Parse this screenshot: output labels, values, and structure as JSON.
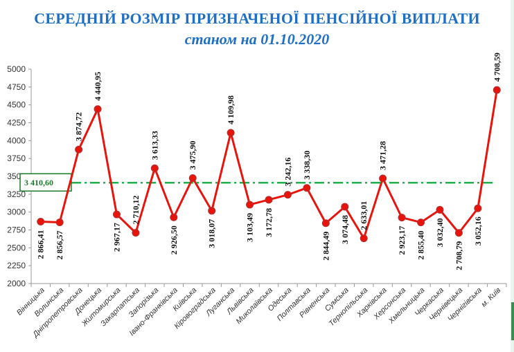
{
  "chart_data": {
    "type": "line",
    "title": "СЕРЕДНІЙ РОЗМІР ПРИЗНАЧЕНОЇ ПЕНСІЙНОЇ ВИПЛАТИ",
    "subtitle": "станом на 01.10.2020",
    "xlabel": "",
    "ylabel": "",
    "ylim": [
      2000,
      5000
    ],
    "yticks": [
      2000,
      2250,
      2500,
      2750,
      3000,
      3250,
      3500,
      3750,
      4000,
      4250,
      4500,
      4750,
      5000
    ],
    "grid": false,
    "categories": [
      "Вінницька",
      "Волинська",
      "Дніпропетровська",
      "Донецька",
      "Житомирська",
      "Закарпатська",
      "Запорізька",
      "Івано-Франківська",
      "Київська",
      "Кіровоградська",
      "Луганська",
      "Львівська",
      "Миколаївська",
      "Одеська",
      "Полтавська",
      "Рівненська",
      "Сумська",
      "Тернопільська",
      "Харківська",
      "Херсонська",
      "Хмельницька",
      "Черкаська",
      "Чернівецька",
      "Чернігівська",
      "м. Київ"
    ],
    "values": [
      2866.41,
      2856.57,
      3874.72,
      4440.95,
      2967.17,
      2710.12,
      3613.33,
      2926.5,
      3475.9,
      3018.07,
      4109.98,
      3103.49,
      3172.78,
      3242.16,
      3338.3,
      2844.49,
      3074.48,
      2633.01,
      3471.28,
      2923.17,
      2855.4,
      3032.4,
      2708.79,
      3052.16,
      4708.59
    ],
    "data_labels": [
      "2 866,41",
      "2 856,57",
      "3 874,72",
      "4 440,95",
      "2 967,17",
      "2 710,12",
      "3 613,33",
      "2 926,50",
      "3 475,90",
      "3 018,07",
      "4 109,98",
      "3 103,49",
      "3 172,78",
      "3 242,16",
      "3 338,30",
      "2 844,49",
      "3 074,48",
      "2 633,01",
      "3 471,28",
      "2 923,17",
      "2 855,40",
      "3 032,40",
      "2 708,79",
      "3 052,16",
      "4 708,59"
    ],
    "label_position": [
      "below",
      "below",
      "above",
      "above",
      "below",
      "above",
      "above",
      "below",
      "above",
      "below",
      "above",
      "below",
      "below",
      "above",
      "above",
      "below",
      "below",
      "above",
      "above",
      "below",
      "below",
      "below",
      "below",
      "below",
      "above"
    ],
    "reference_line": {
      "value": 3410.6,
      "label": "3 410,60",
      "color": "#1fb04c",
      "style": "dash-dot"
    },
    "series_color": "#e8140c",
    "marker_color": "#e8140c"
  }
}
